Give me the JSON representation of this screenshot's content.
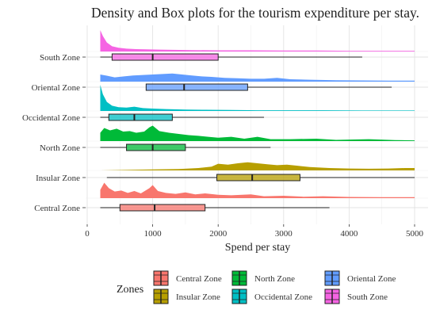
{
  "chart_data": {
    "type": "density-box",
    "title": "Density and Box plots for the tourism expenditure per stay.",
    "xlabel": "Spend per stay",
    "ylabel": "",
    "xlim": [
      0,
      5000
    ],
    "x_ticks": [
      0,
      1000,
      2000,
      3000,
      4000,
      5000
    ],
    "grid": true,
    "legend": {
      "title": "Zones",
      "position": "bottom",
      "items": [
        "Central Zone",
        "Insular Zone",
        "North Zone",
        "Occidental Zone",
        "Oriental Zone",
        "South Zone"
      ]
    },
    "series": [
      {
        "name": "Central Zone",
        "color": "#F8766D",
        "box": {
          "min": 200,
          "q1": 500,
          "median": 1030,
          "q3": 1800,
          "max": 3700
        },
        "density": [
          [
            200,
            0.35
          ],
          [
            260,
            0.65
          ],
          [
            330,
            0.42
          ],
          [
            420,
            0.28
          ],
          [
            520,
            0.32
          ],
          [
            620,
            0.22
          ],
          [
            720,
            0.3
          ],
          [
            820,
            0.2
          ],
          [
            950,
            0.42
          ],
          [
            1000,
            0.55
          ],
          [
            1080,
            0.3
          ],
          [
            1200,
            0.22
          ],
          [
            1350,
            0.18
          ],
          [
            1500,
            0.24
          ],
          [
            1650,
            0.16
          ],
          [
            1800,
            0.2
          ],
          [
            2000,
            0.14
          ],
          [
            2200,
            0.12
          ],
          [
            2500,
            0.16
          ],
          [
            2700,
            0.08
          ],
          [
            3000,
            0.1
          ],
          [
            3300,
            0.06
          ],
          [
            3600,
            0.08
          ],
          [
            4000,
            0.05
          ],
          [
            4500,
            0.04
          ],
          [
            5000,
            0.04
          ]
        ]
      },
      {
        "name": "Insular Zone",
        "color": "#B79F00",
        "box": {
          "min": 300,
          "q1": 1980,
          "median": 2520,
          "q3": 3250,
          "max": 5000
        },
        "density": [
          [
            200,
            0.0
          ],
          [
            600,
            0.02
          ],
          [
            1000,
            0.04
          ],
          [
            1400,
            0.06
          ],
          [
            1700,
            0.1
          ],
          [
            1900,
            0.16
          ],
          [
            2000,
            0.28
          ],
          [
            2150,
            0.24
          ],
          [
            2300,
            0.3
          ],
          [
            2450,
            0.34
          ],
          [
            2600,
            0.3
          ],
          [
            2750,
            0.26
          ],
          [
            2900,
            0.22
          ],
          [
            3050,
            0.24
          ],
          [
            3200,
            0.2
          ],
          [
            3400,
            0.14
          ],
          [
            3700,
            0.1
          ],
          [
            4000,
            0.08
          ],
          [
            4300,
            0.07
          ],
          [
            4600,
            0.08
          ],
          [
            4850,
            0.1
          ],
          [
            5000,
            0.1
          ]
        ]
      },
      {
        "name": "North Zone",
        "color": "#00BA38",
        "box": {
          "min": 200,
          "q1": 600,
          "median": 1000,
          "q3": 1500,
          "max": 2800
        },
        "density": [
          [
            200,
            0.35
          ],
          [
            260,
            0.55
          ],
          [
            350,
            0.45
          ],
          [
            450,
            0.52
          ],
          [
            550,
            0.4
          ],
          [
            650,
            0.42
          ],
          [
            750,
            0.35
          ],
          [
            870,
            0.4
          ],
          [
            950,
            0.58
          ],
          [
            1000,
            0.65
          ],
          [
            1100,
            0.42
          ],
          [
            1250,
            0.35
          ],
          [
            1400,
            0.3
          ],
          [
            1550,
            0.25
          ],
          [
            1700,
            0.22
          ],
          [
            1850,
            0.18
          ],
          [
            2000,
            0.14
          ],
          [
            2200,
            0.18
          ],
          [
            2400,
            0.1
          ],
          [
            2600,
            0.18
          ],
          [
            2800,
            0.08
          ],
          [
            3100,
            0.08
          ],
          [
            3500,
            0.1
          ],
          [
            3800,
            0.05
          ],
          [
            4300,
            0.08
          ],
          [
            4700,
            0.04
          ],
          [
            5000,
            0.03
          ]
        ]
      },
      {
        "name": "Occidental Zone",
        "color": "#00BFC4",
        "box": {
          "min": 200,
          "q1": 330,
          "median": 720,
          "q3": 1300,
          "max": 2700
        },
        "density": [
          [
            200,
            1.1
          ],
          [
            240,
            0.7
          ],
          [
            300,
            0.38
          ],
          [
            380,
            0.22
          ],
          [
            480,
            0.16
          ],
          [
            600,
            0.14
          ],
          [
            720,
            0.18
          ],
          [
            850,
            0.12
          ],
          [
            1000,
            0.1
          ],
          [
            1200,
            0.08
          ],
          [
            1500,
            0.06
          ],
          [
            1800,
            0.05
          ],
          [
            2200,
            0.04
          ],
          [
            2600,
            0.03
          ],
          [
            3000,
            0.03
          ],
          [
            3600,
            0.03
          ],
          [
            4200,
            0.02
          ],
          [
            5000,
            0.02
          ]
        ]
      },
      {
        "name": "Oriental Zone",
        "color": "#619CFF",
        "box": {
          "min": 900,
          "q1": 900,
          "median": 1480,
          "q3": 2450,
          "max": 4650
        },
        "density": [
          [
            200,
            0.3
          ],
          [
            300,
            0.25
          ],
          [
            420,
            0.18
          ],
          [
            560,
            0.22
          ],
          [
            700,
            0.26
          ],
          [
            850,
            0.28
          ],
          [
            1000,
            0.3
          ],
          [
            1150,
            0.32
          ],
          [
            1300,
            0.34
          ],
          [
            1450,
            0.3
          ],
          [
            1600,
            0.26
          ],
          [
            1750,
            0.22
          ],
          [
            1900,
            0.2
          ],
          [
            2100,
            0.16
          ],
          [
            2300,
            0.14
          ],
          [
            2500,
            0.12
          ],
          [
            2700,
            0.12
          ],
          [
            2900,
            0.16
          ],
          [
            3100,
            0.1
          ],
          [
            3400,
            0.08
          ],
          [
            3800,
            0.06
          ],
          [
            4200,
            0.05
          ],
          [
            4600,
            0.04
          ],
          [
            5000,
            0.04
          ]
        ]
      },
      {
        "name": "South Zone",
        "color": "#F564E3",
        "box": {
          "min": 200,
          "q1": 380,
          "median": 1000,
          "q3": 2000,
          "max": 4200
        },
        "density": [
          [
            200,
            0.9
          ],
          [
            240,
            0.65
          ],
          [
            300,
            0.38
          ],
          [
            380,
            0.22
          ],
          [
            480,
            0.16
          ],
          [
            600,
            0.12
          ],
          [
            750,
            0.1
          ],
          [
            900,
            0.09
          ],
          [
            1100,
            0.08
          ],
          [
            1300,
            0.07
          ],
          [
            1600,
            0.06
          ],
          [
            2000,
            0.05
          ],
          [
            2500,
            0.05
          ],
          [
            3000,
            0.04
          ],
          [
            3500,
            0.04
          ],
          [
            4000,
            0.03
          ],
          [
            4500,
            0.03
          ],
          [
            5000,
            0.03
          ]
        ]
      }
    ]
  }
}
